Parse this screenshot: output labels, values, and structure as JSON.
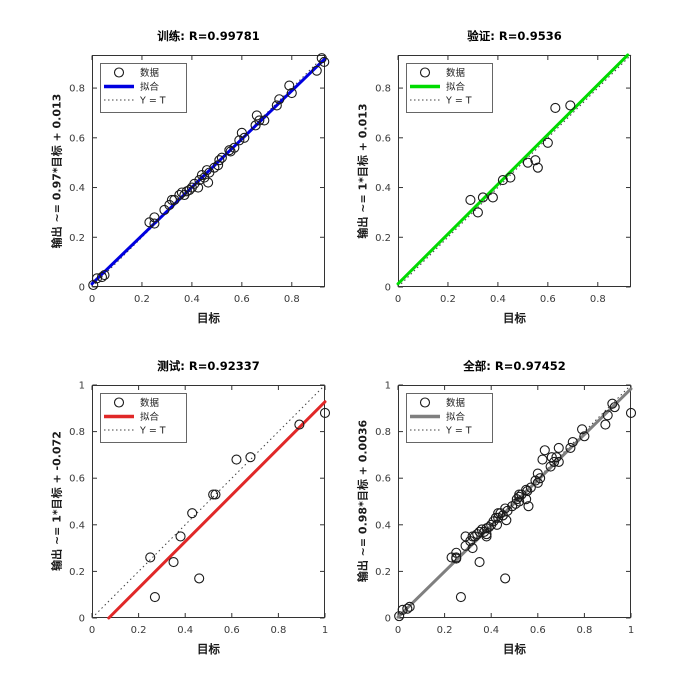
{
  "figure": {
    "background": "#ffffff",
    "axis_color": "#333333",
    "marker_color": "#1a1a1a",
    "identity_color": "#404040"
  },
  "chart_data": [
    {
      "type": "scatter",
      "id": "train",
      "title": "训练: R=0.99781",
      "r_value": 0.99781,
      "xlabel": "目标",
      "ylabel": "输出 ~= 0.97*目标 + 0.013",
      "xlim": [
        0,
        0.933
      ],
      "ylim": [
        0,
        0.933
      ],
      "xticks": [
        0,
        0.2,
        0.4,
        0.6,
        0.8
      ],
      "yticks": [
        0,
        0.2,
        0.4,
        0.6,
        0.8
      ],
      "grid": false,
      "legend": {
        "position": "top-left",
        "entries": [
          "数据",
          "拟合",
          "Y = T"
        ]
      },
      "fit": {
        "slope": 0.97,
        "intercept": 0.013,
        "color": "#0000E0"
      },
      "identity": {
        "label": "Y = T",
        "color": "#404040"
      },
      "points": [
        [
          0.005,
          0.008
        ],
        [
          0.02,
          0.035
        ],
        [
          0.04,
          0.04
        ],
        [
          0.05,
          0.048
        ],
        [
          0.23,
          0.26
        ],
        [
          0.25,
          0.28
        ],
        [
          0.25,
          0.255
        ],
        [
          0.29,
          0.31
        ],
        [
          0.31,
          0.33
        ],
        [
          0.32,
          0.35
        ],
        [
          0.33,
          0.35
        ],
        [
          0.35,
          0.37
        ],
        [
          0.36,
          0.38
        ],
        [
          0.37,
          0.37
        ],
        [
          0.38,
          0.385
        ],
        [
          0.39,
          0.39
        ],
        [
          0.4,
          0.4
        ],
        [
          0.41,
          0.415
        ],
        [
          0.425,
          0.4
        ],
        [
          0.43,
          0.43
        ],
        [
          0.44,
          0.45
        ],
        [
          0.45,
          0.44
        ],
        [
          0.46,
          0.47
        ],
        [
          0.465,
          0.42
        ],
        [
          0.47,
          0.46
        ],
        [
          0.49,
          0.48
        ],
        [
          0.505,
          0.49
        ],
        [
          0.51,
          0.51
        ],
        [
          0.52,
          0.52
        ],
        [
          0.55,
          0.55
        ],
        [
          0.555,
          0.545
        ],
        [
          0.57,
          0.56
        ],
        [
          0.59,
          0.59
        ],
        [
          0.6,
          0.62
        ],
        [
          0.61,
          0.6
        ],
        [
          0.655,
          0.65
        ],
        [
          0.66,
          0.69
        ],
        [
          0.67,
          0.67
        ],
        [
          0.69,
          0.67
        ],
        [
          0.74,
          0.73
        ],
        [
          0.75,
          0.755
        ],
        [
          0.79,
          0.81
        ],
        [
          0.8,
          0.78
        ],
        [
          0.9,
          0.87
        ],
        [
          0.92,
          0.92
        ],
        [
          0.93,
          0.905
        ]
      ]
    },
    {
      "type": "scatter",
      "id": "validation",
      "title": "验证: R=0.9536",
      "r_value": 0.9536,
      "xlabel": "目标",
      "ylabel": "输出 ~= 1*目标 + 0.013",
      "xlim": [
        0,
        0.933
      ],
      "ylim": [
        0,
        0.933
      ],
      "xticks": [
        0,
        0.2,
        0.4,
        0.6,
        0.8
      ],
      "yticks": [
        0,
        0.2,
        0.4,
        0.6,
        0.8
      ],
      "grid": false,
      "legend": {
        "position": "top-left",
        "entries": [
          "数据",
          "拟合",
          "Y = T"
        ]
      },
      "fit": {
        "slope": 1,
        "intercept": 0.013,
        "color": "#00DB00"
      },
      "identity": {
        "label": "Y = T",
        "color": "#404040"
      },
      "points": [
        [
          0.29,
          0.35
        ],
        [
          0.32,
          0.3
        ],
        [
          0.34,
          0.36
        ],
        [
          0.38,
          0.36
        ],
        [
          0.42,
          0.43
        ],
        [
          0.45,
          0.44
        ],
        [
          0.52,
          0.5
        ],
        [
          0.55,
          0.51
        ],
        [
          0.56,
          0.48
        ],
        [
          0.6,
          0.58
        ],
        [
          0.63,
          0.72
        ],
        [
          0.69,
          0.73
        ]
      ]
    },
    {
      "type": "scatter",
      "id": "test",
      "title": "测试: R=0.92337",
      "r_value": 0.92337,
      "xlabel": "目标",
      "ylabel": "输出 ~= 1*目标 + -0.072",
      "xlim": [
        0,
        1
      ],
      "ylim": [
        0,
        1
      ],
      "xticks": [
        0,
        0.2,
        0.4,
        0.6,
        0.8,
        1
      ],
      "yticks": [
        0,
        0.2,
        0.4,
        0.6,
        0.8,
        1
      ],
      "grid": false,
      "legend": {
        "position": "top-left",
        "entries": [
          "数据",
          "拟合",
          "Y = T"
        ]
      },
      "fit": {
        "slope": 1,
        "intercept": -0.072,
        "color": "#E02828"
      },
      "identity": {
        "label": "Y = T",
        "color": "#404040"
      },
      "points": [
        [
          0.25,
          0.26
        ],
        [
          0.27,
          0.09
        ],
        [
          0.35,
          0.24
        ],
        [
          0.38,
          0.35
        ],
        [
          0.43,
          0.45
        ],
        [
          0.46,
          0.17
        ],
        [
          0.52,
          0.53
        ],
        [
          0.53,
          0.53
        ],
        [
          0.62,
          0.68
        ],
        [
          0.68,
          0.69
        ],
        [
          0.89,
          0.83
        ],
        [
          1.0,
          0.88
        ]
      ]
    },
    {
      "type": "scatter",
      "id": "all",
      "title": "全部: R=0.97452",
      "r_value": 0.97452,
      "xlabel": "目标",
      "ylabel": "输出 ~= 0.98*目标 + 0.0036",
      "xlim": [
        0,
        1
      ],
      "ylim": [
        0,
        1
      ],
      "xticks": [
        0,
        0.2,
        0.4,
        0.6,
        0.8,
        1
      ],
      "yticks": [
        0,
        0.2,
        0.4,
        0.6,
        0.8,
        1
      ],
      "grid": false,
      "legend": {
        "position": "top-left",
        "entries": [
          "数据",
          "拟合",
          "Y = T"
        ]
      },
      "fit": {
        "slope": 0.98,
        "intercept": 0.0036,
        "color": "#7F7F7F"
      },
      "identity": {
        "label": "Y = T",
        "color": "#404040"
      },
      "points": [
        [
          0.005,
          0.008
        ],
        [
          0.02,
          0.035
        ],
        [
          0.04,
          0.04
        ],
        [
          0.05,
          0.048
        ],
        [
          0.23,
          0.26
        ],
        [
          0.25,
          0.28
        ],
        [
          0.25,
          0.255
        ],
        [
          0.29,
          0.31
        ],
        [
          0.31,
          0.33
        ],
        [
          0.32,
          0.35
        ],
        [
          0.33,
          0.35
        ],
        [
          0.35,
          0.37
        ],
        [
          0.36,
          0.38
        ],
        [
          0.37,
          0.37
        ],
        [
          0.38,
          0.385
        ],
        [
          0.39,
          0.39
        ],
        [
          0.4,
          0.4
        ],
        [
          0.41,
          0.415
        ],
        [
          0.425,
          0.4
        ],
        [
          0.43,
          0.43
        ],
        [
          0.44,
          0.45
        ],
        [
          0.45,
          0.44
        ],
        [
          0.46,
          0.47
        ],
        [
          0.465,
          0.42
        ],
        [
          0.47,
          0.46
        ],
        [
          0.49,
          0.48
        ],
        [
          0.505,
          0.49
        ],
        [
          0.51,
          0.51
        ],
        [
          0.52,
          0.52
        ],
        [
          0.55,
          0.55
        ],
        [
          0.555,
          0.545
        ],
        [
          0.57,
          0.56
        ],
        [
          0.59,
          0.59
        ],
        [
          0.6,
          0.62
        ],
        [
          0.61,
          0.6
        ],
        [
          0.655,
          0.65
        ],
        [
          0.66,
          0.69
        ],
        [
          0.67,
          0.67
        ],
        [
          0.69,
          0.67
        ],
        [
          0.74,
          0.73
        ],
        [
          0.75,
          0.755
        ],
        [
          0.79,
          0.81
        ],
        [
          0.8,
          0.78
        ],
        [
          0.9,
          0.87
        ],
        [
          0.92,
          0.92
        ],
        [
          0.93,
          0.905
        ],
        [
          0.29,
          0.35
        ],
        [
          0.32,
          0.3
        ],
        [
          0.34,
          0.36
        ],
        [
          0.38,
          0.36
        ],
        [
          0.42,
          0.43
        ],
        [
          0.45,
          0.44
        ],
        [
          0.52,
          0.5
        ],
        [
          0.55,
          0.51
        ],
        [
          0.56,
          0.48
        ],
        [
          0.6,
          0.58
        ],
        [
          0.63,
          0.72
        ],
        [
          0.69,
          0.73
        ],
        [
          0.25,
          0.26
        ],
        [
          0.27,
          0.09
        ],
        [
          0.35,
          0.24
        ],
        [
          0.38,
          0.35
        ],
        [
          0.43,
          0.45
        ],
        [
          0.46,
          0.17
        ],
        [
          0.52,
          0.53
        ],
        [
          0.53,
          0.53
        ],
        [
          0.62,
          0.68
        ],
        [
          0.68,
          0.69
        ],
        [
          0.89,
          0.83
        ],
        [
          1.0,
          0.88
        ]
      ]
    }
  ]
}
